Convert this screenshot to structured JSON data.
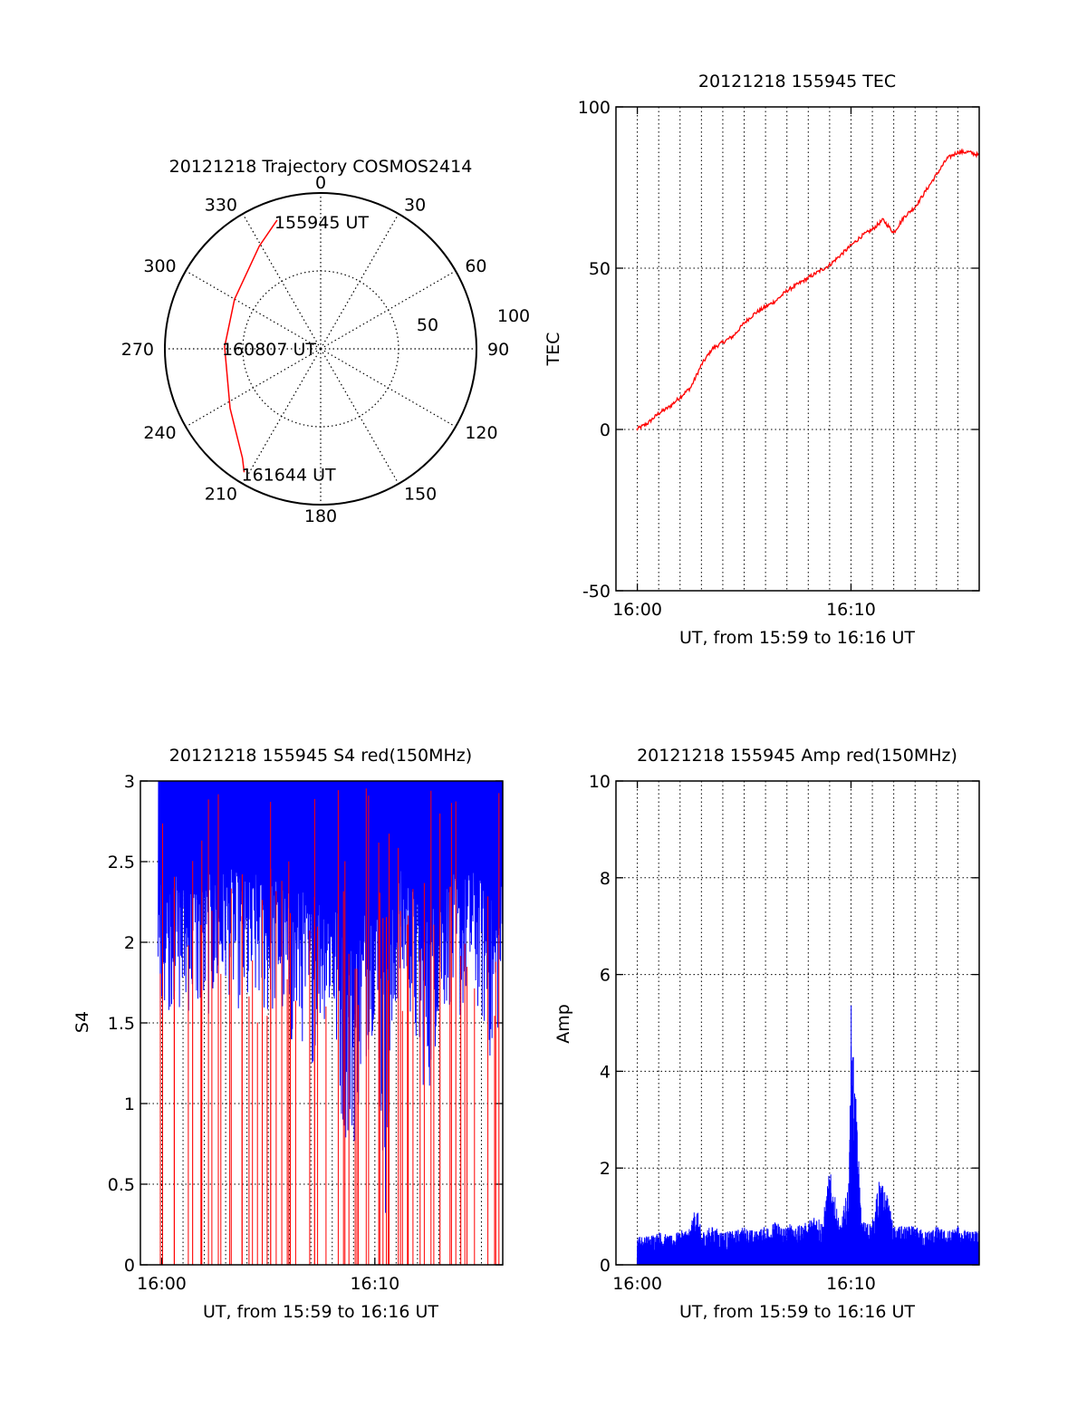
{
  "colors": {
    "axis": "#000000",
    "grid": "#000000",
    "red": "#ff0000",
    "blue": "#0000ff"
  },
  "chart_data": [
    {
      "id": "trajectory",
      "type": "polar",
      "title": "20121218 Trajectory COSMOS2414",
      "azimuth_labels": [
        "0",
        "30",
        "60",
        "90",
        "120",
        "150",
        "180",
        "210",
        "240",
        "270",
        "300",
        "330"
      ],
      "radial_labels": [
        "50",
        "100"
      ],
      "grid": true,
      "series": [
        {
          "color": "red",
          "points": [
            {
              "az": 341.3,
              "el": 11.5
            },
            {
              "az": 329.1,
              "el": 20.9
            },
            {
              "az": 299.9,
              "el": 32.6
            },
            {
              "az": 271.2,
              "el": 34.5
            },
            {
              "az": 236.7,
              "el": 27.4
            },
            {
              "az": 215.6,
              "el": 12.4
            },
            {
              "az": 211.8,
              "el": 6.1
            }
          ]
        }
      ],
      "annotations": [
        {
          "text": "155945 UT",
          "az": 341.3,
          "el": 11.5
        },
        {
          "text": "160807 UT",
          "az": 271.2,
          "el": 34.5
        },
        {
          "text": "161644 UT",
          "az": 211.8,
          "el": 6.1
        }
      ]
    },
    {
      "id": "tec",
      "type": "line",
      "title": "20121218 155945 TEC",
      "xlabel": "UT, from 15:59 to 16:16 UT",
      "ylabel": "TEC",
      "xticks": [
        "16:00",
        "16:10"
      ],
      "xlim": [
        "15:59",
        "16:16"
      ],
      "ylim": [
        -50,
        100
      ],
      "yticks": [
        -50,
        0,
        50,
        100
      ],
      "grid": true,
      "series": [
        {
          "color": "red",
          "x": [
            "15:59:58",
            "16:00:30",
            "16:01:00",
            "16:01:30",
            "16:02:00",
            "16:02:30",
            "16:03:00",
            "16:03:30",
            "16:04:00",
            "16:04:30",
            "16:05:00",
            "16:05:30",
            "16:06:00",
            "16:06:30",
            "16:07:00",
            "16:07:30",
            "16:08:00",
            "16:08:30",
            "16:09:00",
            "16:09:30",
            "16:10:00",
            "16:10:30",
            "16:11:00",
            "16:11:30",
            "16:12:00",
            "16:12:30",
            "16:13:00",
            "16:13:30",
            "16:14:00",
            "16:14:30",
            "16:15:00",
            "16:15:30",
            "16:16:00",
            "16:16:30"
          ],
          "y": [
            0,
            2,
            5,
            7,
            10,
            13,
            20,
            25,
            27,
            29,
            33,
            36,
            38,
            40,
            43,
            45,
            47,
            49,
            51,
            54,
            57,
            60,
            62,
            65,
            61,
            66,
            69,
            74,
            79,
            84,
            86,
            86,
            85,
            87
          ]
        }
      ]
    },
    {
      "id": "s4",
      "type": "line",
      "title": "20121218 155945 S4 red(150MHz)",
      "xlabel": "UT, from 15:59 to 16:16 UT",
      "ylabel": "S4",
      "xticks": [
        "16:00",
        "16:10"
      ],
      "xlim": [
        "15:59",
        "16:16"
      ],
      "ylim": [
        0,
        3
      ],
      "yticks": [
        "0",
        "0.5",
        "1",
        "1.5",
        "2",
        "2.5",
        "3"
      ],
      "grid": true,
      "series": [
        {
          "color": "blue",
          "x": [
            "15:59:50",
            "16:00:30",
            "16:01:00",
            "16:01:30",
            "16:02:00",
            "16:02:30",
            "16:03:00",
            "16:03:30",
            "16:04:00",
            "16:04:30",
            "16:05:00",
            "16:05:30",
            "16:06:00",
            "16:06:30",
            "16:07:00",
            "16:07:30",
            "16:08:00",
            "16:08:30",
            "16:09:00",
            "16:09:30",
            "16:10:00",
            "16:10:30",
            "16:11:00",
            "16:11:30",
            "16:12:00",
            "16:12:30",
            "16:13:00",
            "16:13:30",
            "16:14:00",
            "16:14:30",
            "16:15:00",
            "16:15:30",
            "16:16:00"
          ],
          "y_min": [
            1.5,
            1.6,
            1.5,
            1.6,
            1.5,
            1.6,
            1.7,
            1.6,
            1.5,
            1.6,
            1.5,
            1.6,
            1.3,
            1.4,
            1.2,
            1.5,
            1.5,
            0.8,
            0.7,
            1.2,
            1.5,
            0.2,
            1.6,
            1.7,
            1.2,
            1.0,
            1.5,
            1.6,
            1.5,
            1.7,
            1.5,
            1.2,
            1.6
          ],
          "y_max": [
            3,
            3,
            3,
            3,
            3,
            3,
            3,
            3,
            3,
            3,
            3,
            3,
            3,
            3,
            3,
            3,
            3,
            3,
            3,
            3,
            3,
            3,
            3,
            3,
            3,
            3,
            3,
            3,
            3,
            3,
            3,
            3,
            3
          ]
        },
        {
          "color": "red",
          "x": [
            "16:00:05",
            "16:00:45",
            "16:01:20",
            "16:01:50",
            "16:02:20",
            "16:02:45",
            "16:03:10",
            "16:03:40",
            "16:04:10",
            "16:04:35",
            "16:05:00",
            "16:05:30",
            "16:05:55",
            "16:06:25",
            "16:06:50",
            "16:07:20",
            "16:07:45",
            "16:08:15",
            "16:08:40",
            "16:09:10",
            "16:09:40",
            "16:10:15",
            "16:10:40",
            "16:11:10",
            "16:11:40",
            "16:12:10",
            "16:12:40",
            "16:13:10",
            "16:13:40",
            "16:14:10",
            "16:14:40",
            "16:15:10",
            "16:15:40",
            "16:16:10"
          ],
          "y_min": [
            0,
            0,
            0,
            0,
            0,
            0,
            0,
            0,
            0,
            0,
            0,
            0,
            0,
            0,
            0,
            0,
            0,
            0,
            0,
            0,
            0,
            0,
            0,
            0,
            0,
            0,
            0,
            0,
            0,
            0,
            0,
            0,
            0,
            0
          ],
          "y_max": [
            3,
            3,
            3,
            3,
            3,
            3,
            3,
            3,
            3,
            3,
            3,
            3,
            3,
            3,
            3,
            3,
            3,
            3,
            3,
            3,
            3,
            3,
            3,
            3,
            3,
            3,
            3,
            3,
            3,
            3,
            3,
            3,
            3,
            3
          ]
        }
      ]
    },
    {
      "id": "amp",
      "type": "line",
      "title": "20121218 155945 Amp red(150MHz)",
      "xlabel": "UT, from 15:59 to 16:16 UT",
      "ylabel": "Amp",
      "xticks": [
        "16:00",
        "16:10"
      ],
      "xlim": [
        "15:59",
        "16:16"
      ],
      "ylim": [
        0,
        10
      ],
      "yticks": [
        0,
        2,
        4,
        6,
        8,
        10
      ],
      "grid": true,
      "series": [
        {
          "color": "blue",
          "x": [
            "16:00:00",
            "16:00:30",
            "16:01:00",
            "16:01:30",
            "16:02:00",
            "16:02:30",
            "16:02:45",
            "16:03:00",
            "16:03:30",
            "16:04:00",
            "16:04:30",
            "16:05:00",
            "16:05:30",
            "16:06:00",
            "16:06:30",
            "16:07:00",
            "16:07:15",
            "16:07:30",
            "16:08:00",
            "16:08:20",
            "16:08:40",
            "16:09:00",
            "16:09:30",
            "16:09:55",
            "16:10:00",
            "16:10:05",
            "16:10:30",
            "16:11:00",
            "16:11:20",
            "16:11:40",
            "16:12:00",
            "16:12:30",
            "16:13:00",
            "16:13:30",
            "16:14:00",
            "16:14:30",
            "16:15:00",
            "16:15:30",
            "16:16:00",
            "16:16:30"
          ],
          "y": [
            0.6,
            0.6,
            0.7,
            0.6,
            0.7,
            0.8,
            1.3,
            0.7,
            0.8,
            0.7,
            0.7,
            0.8,
            0.7,
            0.8,
            0.9,
            0.8,
            0.9,
            0.8,
            0.9,
            1.1,
            0.9,
            2.0,
            0.8,
            1.8,
            5.5,
            4.8,
            0.9,
            0.9,
            1.8,
            1.5,
            0.8,
            0.8,
            0.8,
            0.7,
            0.8,
            0.7,
            0.8,
            0.7,
            0.7,
            0.7
          ]
        }
      ]
    }
  ]
}
